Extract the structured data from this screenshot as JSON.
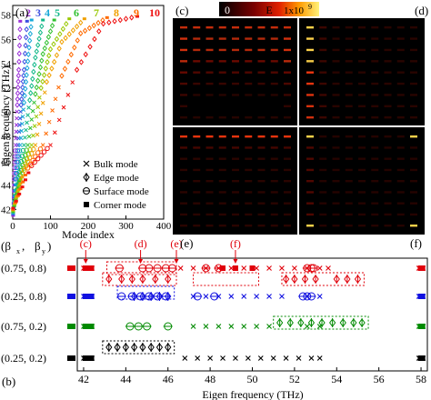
{
  "panels": {
    "a": "(a)",
    "b": "(b)",
    "c": "(c)",
    "d": "(d)",
    "e": "(e)",
    "f": "(f)"
  },
  "colorbar": {
    "min": "0",
    "mid": "E",
    "max": "1x10",
    "max_exp": "9"
  },
  "colors": {
    "bulk": "#000000",
    "red": "#e0000a",
    "blue": "#1010e0",
    "green": "#008a00",
    "c2": "#9b30d8",
    "c3": "#3a4de0",
    "c4": "#18a8d8",
    "c5": "#10b888",
    "c6": "#30c030",
    "c7": "#98c800",
    "c8": "#f0a000",
    "c9": "#ff6a00",
    "c10": "#ee1010"
  },
  "legend_a": [
    {
      "label": "Bulk mode",
      "marker": "x"
    },
    {
      "label": "Edge mode",
      "marker": "diamond-bar"
    },
    {
      "label": "Surface mode",
      "marker": "circle-bar"
    },
    {
      "label": "Corner mode",
      "marker": "square"
    }
  ],
  "series_numbers": [
    "2",
    "3",
    "4",
    "5",
    "6",
    "7",
    "8",
    "9",
    "10"
  ],
  "beta_labels": {
    "bx": "(β",
    "by": "β",
    "sub_x": "x",
    "sub_y": "y",
    "comma": ",",
    "paren": ")"
  },
  "annot_e": [
    "(c)",
    "(d)",
    "(e)",
    "(f)"
  ],
  "row_labels": [
    "(0.75, 0.8)",
    "(0.25, 0.8)",
    "(0.75, 0.2)",
    "(0.25, 0.2)"
  ],
  "chart_data": [
    {
      "type": "scatter",
      "xlabel": "Mode index",
      "ylabel": "Eigen frequency (THz)",
      "xlim": [
        0,
        400
      ],
      "ylim": [
        41.2,
        58.8
      ],
      "xticks": [
        0,
        100,
        200,
        300,
        400
      ],
      "yticks": [
        42,
        44,
        46,
        48,
        50,
        52,
        54,
        56,
        58
      ],
      "series": [
        {
          "name": "2",
          "x": [
            1,
            4,
            8,
            12,
            16,
            20
          ],
          "y": [
            41.5,
            44.5,
            47.3,
            50.6,
            53.5,
            57.5
          ]
        },
        {
          "name": "3",
          "x": [
            1,
            8,
            14,
            22,
            30,
            38
          ],
          "y": [
            41.6,
            44.5,
            47.3,
            50.6,
            53.5,
            57.5
          ]
        },
        {
          "name": "4",
          "x": [
            1,
            10,
            20,
            30,
            40,
            50
          ],
          "y": [
            41.7,
            44.5,
            47.3,
            50.8,
            54.2,
            57.6
          ]
        },
        {
          "name": "5",
          "x": [
            1,
            15,
            30,
            45,
            60,
            80
          ],
          "y": [
            41.8,
            44.6,
            47.3,
            51.0,
            54.5,
            57.6
          ]
        },
        {
          "name": "6",
          "x": [
            1,
            20,
            40,
            60,
            80,
            110
          ],
          "y": [
            41.8,
            44.8,
            47.3,
            51.5,
            54.8,
            57.6
          ]
        },
        {
          "name": "7",
          "x": [
            1,
            25,
            50,
            75,
            100,
            150
          ],
          "y": [
            41.9,
            45.0,
            47.3,
            52.0,
            55.2,
            57.7
          ]
        },
        {
          "name": "8",
          "x": [
            1,
            30,
            60,
            90,
            130,
            190
          ],
          "y": [
            42.0,
            45.2,
            47.3,
            52.5,
            55.8,
            57.7
          ]
        },
        {
          "name": "9",
          "x": [
            1,
            40,
            80,
            130,
            180,
            250
          ],
          "y": [
            42.0,
            45.4,
            47.3,
            53.0,
            56.5,
            57.8
          ]
        },
        {
          "name": "10",
          "x": [
            1,
            50,
            100,
            170,
            240,
            330
          ],
          "y": [
            42.1,
            45.6,
            47.3,
            53.5,
            57.3,
            57.9
          ]
        }
      ],
      "legend": [
        "Bulk mode",
        "Edge mode",
        "Surface mode",
        "Corner mode"
      ],
      "legend_placement": "bottom-right"
    },
    {
      "type": "scatter",
      "xlabel": "Eigen frequency (THz)",
      "xlim": [
        41.7,
        58.3
      ],
      "xticks": [
        42,
        44,
        46,
        48,
        50,
        52,
        54,
        56,
        58
      ],
      "categories": [
        "(0.75, 0.8)",
        "(0.25, 0.8)",
        "(0.75, 0.2)",
        "(0.25, 0.2)"
      ],
      "series": [
        {
          "name": "Bulk mode",
          "row": 0,
          "x": [
            42.0,
            42.2,
            42.4,
            46.6,
            47.2,
            47.8,
            48.4,
            49.0,
            49.6,
            50.2,
            50.8,
            51.4,
            52.0,
            52.6,
            53.2,
            53.6,
            57.9,
            58.1
          ]
        },
        {
          "name": "Edge mode",
          "row": 0,
          "x": [
            43.2,
            43.8,
            44.3,
            44.8,
            45.4,
            46.0,
            51.6,
            52.0,
            52.5,
            53.0,
            54.0,
            54.5,
            55.0
          ]
        },
        {
          "name": "Surface mode",
          "row": 0,
          "x": [
            43.7,
            44.8,
            45.1,
            45.5,
            45.9,
            46.2,
            47.8,
            48.4,
            52.6,
            52.8,
            52.9
          ]
        },
        {
          "name": "Corner mode",
          "row": 0,
          "x": [
            48.6,
            49.2,
            50.0
          ]
        },
        {
          "name": "Bulk mode",
          "row": 1,
          "x": [
            42.0,
            42.2,
            42.4,
            47.2,
            47.8,
            48.4,
            49.0,
            49.6,
            50.2,
            50.8,
            51.4,
            52.6,
            53.2,
            57.9,
            58.1
          ]
        },
        {
          "name": "Edge mode",
          "row": 1,
          "x": [
            44.4,
            44.8,
            45.2,
            45.6,
            46.0
          ]
        },
        {
          "name": "Surface mode",
          "row": 1,
          "x": [
            43.8,
            44.3,
            44.7,
            45.1,
            45.5,
            45.9,
            47.4,
            48.2,
            52.4,
            52.6,
            52.8
          ]
        },
        {
          "name": "Bulk mode",
          "row": 2,
          "x": [
            42.0,
            42.2,
            42.4,
            47.2,
            47.8,
            48.4,
            49.0,
            49.6,
            50.2,
            50.8,
            52.6,
            53.2,
            57.9,
            58.1
          ]
        },
        {
          "name": "Edge mode",
          "row": 2,
          "x": [
            51.3,
            51.8,
            52.3,
            52.8,
            53.3,
            53.8,
            54.3,
            54.8,
            55.2
          ]
        },
        {
          "name": "Surface mode",
          "row": 2,
          "x": [
            44.2,
            44.6,
            45.0,
            46.0
          ]
        },
        {
          "name": "Bulk mode",
          "row": 3,
          "x": [
            42.0,
            42.2,
            42.4,
            46.8,
            47.4,
            48.0,
            48.6,
            49.2,
            49.8,
            50.4,
            51.0,
            51.6,
            52.2,
            52.8,
            53.2,
            57.9,
            58.1
          ]
        },
        {
          "name": "Edge mode",
          "row": 3,
          "x": [
            43.2,
            43.6,
            44.0,
            44.4,
            44.8,
            45.2,
            45.6,
            46.0
          ]
        }
      ],
      "annotations": [
        {
          "label": "(c)",
          "x": 42.1
        },
        {
          "label": "(d)",
          "x": 44.7
        },
        {
          "label": "(e)",
          "x": 46.4
        },
        {
          "label": "(f)",
          "x": 49.2
        }
      ]
    }
  ]
}
